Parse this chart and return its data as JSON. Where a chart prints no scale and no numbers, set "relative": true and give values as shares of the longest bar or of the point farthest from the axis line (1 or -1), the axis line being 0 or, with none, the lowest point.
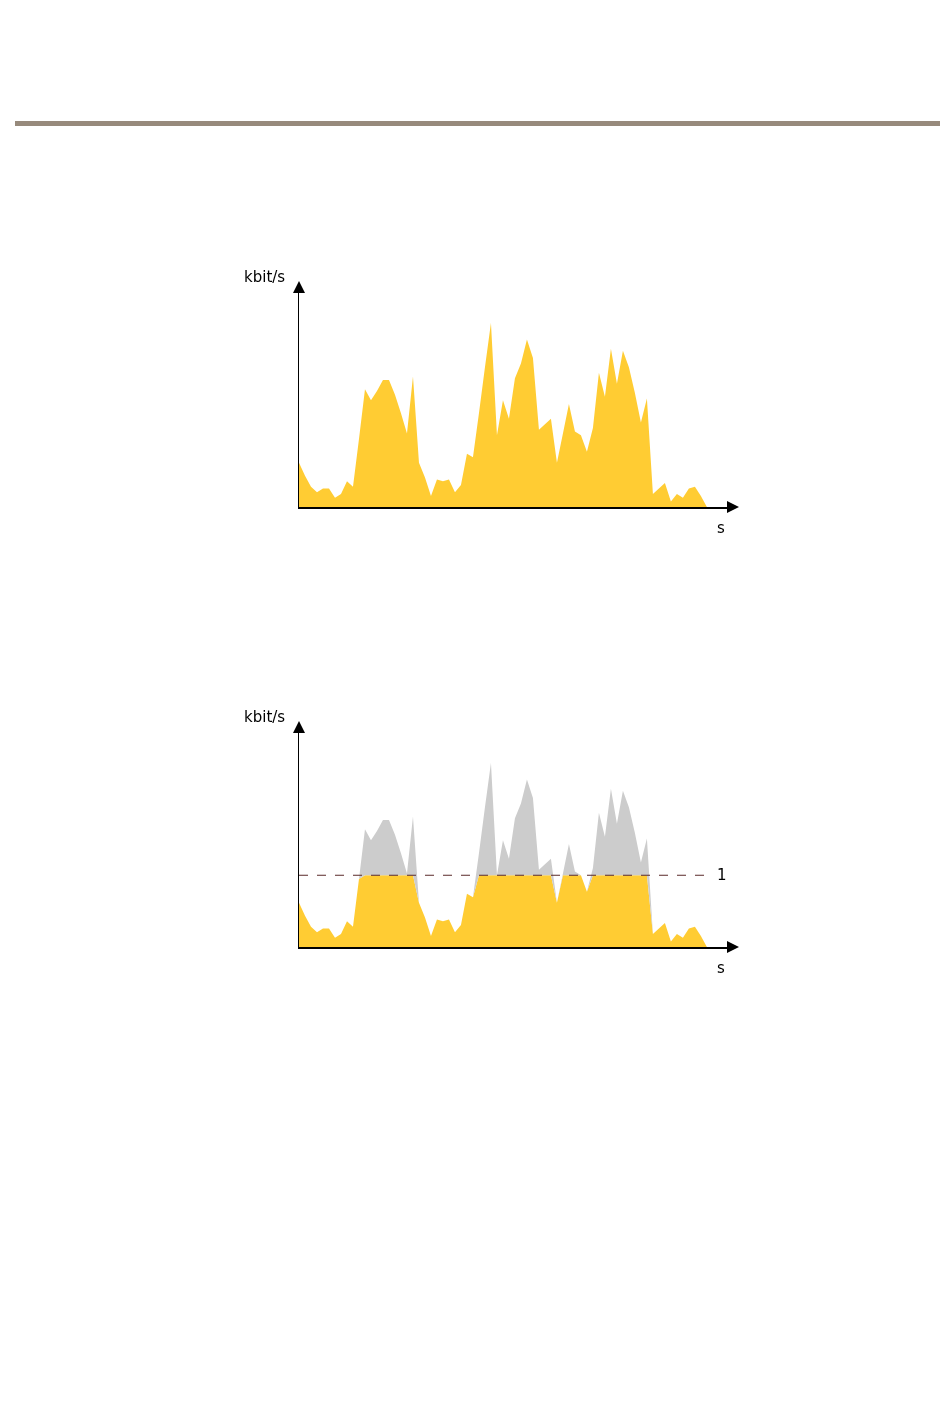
{
  "chart_data": [
    {
      "type": "area",
      "relative": true,
      "xlabel": "s",
      "ylabel": "kbit/s",
      "categories": [
        null,
        null,
        null,
        null,
        null,
        null,
        null,
        null,
        null,
        null,
        null,
        null,
        null,
        null,
        null,
        null,
        null,
        null,
        null,
        null,
        null,
        null,
        null,
        null,
        null,
        null,
        null,
        null,
        null,
        null,
        null,
        null,
        null,
        null,
        null,
        null,
        null,
        null,
        null,
        null,
        null,
        null,
        null,
        null,
        null,
        null,
        null,
        null,
        null,
        null,
        null,
        null,
        null,
        null,
        null,
        null,
        null,
        null,
        null,
        null,
        null,
        null,
        null,
        null,
        null,
        null,
        null,
        null,
        null
      ],
      "series": [
        {
          "color": "#ffcc33",
          "values": [
            0.24,
            0.17,
            0.11,
            0.08,
            0.1,
            0.1,
            0.05,
            0.07,
            0.14,
            0.11,
            0.37,
            0.64,
            0.58,
            0.63,
            0.69,
            0.69,
            0.61,
            0.51,
            0.4,
            0.71,
            0.24,
            0.16,
            0.06,
            0.15,
            0.14,
            0.15,
            0.08,
            0.12,
            0.29,
            0.27,
            0.51,
            0.76,
            1,
            0.39,
            0.58,
            0.48,
            0.7,
            0.78,
            0.91,
            0.81,
            0.42,
            0.45,
            0.48,
            0.24,
            0.4,
            0.56,
            0.41,
            0.39,
            0.3,
            0.43,
            0.73,
            0.6,
            0.86,
            0.67,
            0.85,
            0.76,
            0.62,
            0.46,
            0.59,
            0.07,
            0.1,
            0.13,
            0.03,
            0.07,
            0.05,
            0.1,
            0.11,
            0.06,
            0
          ]
        }
      ]
    },
    {
      "type": "area",
      "relative": true,
      "stacked": true,
      "xlabel": "s",
      "ylabel": "kbit/s",
      "annotations": [
        "1"
      ],
      "categories": [
        null,
        null,
        null,
        null,
        null,
        null,
        null,
        null,
        null,
        null,
        null,
        null,
        null,
        null,
        null,
        null,
        null,
        null,
        null,
        null,
        null,
        null,
        null,
        null,
        null,
        null,
        null,
        null,
        null,
        null,
        null,
        null,
        null,
        null,
        null,
        null,
        null,
        null,
        null,
        null,
        null,
        null,
        null,
        null,
        null,
        null,
        null,
        null,
        null,
        null,
        null,
        null,
        null,
        null,
        null,
        null,
        null,
        null,
        null,
        null,
        null,
        null,
        null,
        null,
        null,
        null,
        null,
        null,
        null
      ],
      "series": [
        {
          "color": "#ffcc33",
          "values": [
            0.24,
            0.17,
            0.11,
            0.08,
            0.1,
            0.1,
            0.05,
            0.07,
            0.14,
            0.11,
            0.37,
            0.39,
            0.39,
            0.39,
            0.39,
            0.39,
            0.39,
            0.39,
            0.39,
            0.39,
            0.24,
            0.16,
            0.06,
            0.15,
            0.14,
            0.15,
            0.08,
            0.12,
            0.29,
            0.27,
            0.39,
            0.39,
            0.39,
            0.39,
            0.39,
            0.39,
            0.39,
            0.39,
            0.39,
            0.39,
            0.39,
            0.39,
            0.39,
            0.24,
            0.39,
            0.39,
            0.39,
            0.39,
            0.3,
            0.39,
            0.39,
            0.39,
            0.39,
            0.39,
            0.39,
            0.39,
            0.39,
            0.39,
            0.39,
            0.07,
            0.1,
            0.13,
            0.03,
            0.07,
            0.05,
            0.1,
            0.11,
            0.06,
            0
          ]
        },
        {
          "color": "#cccccc",
          "values": [
            0,
            0,
            0,
            0,
            0,
            0,
            0,
            0,
            0,
            0,
            0,
            0.25,
            0.19,
            0.24,
            0.3,
            0.3,
            0.22,
            0.12,
            0.01,
            0.32,
            0,
            0,
            0,
            0,
            0,
            0,
            0,
            0,
            0,
            0,
            0.12,
            0.37,
            0.61,
            0,
            0.19,
            0.09,
            0.31,
            0.39,
            0.52,
            0.42,
            0.03,
            0.06,
            0.09,
            0,
            0.01,
            0.17,
            0.02,
            0,
            0,
            0.04,
            0.34,
            0.21,
            0.47,
            0.28,
            0.46,
            0.37,
            0.23,
            0.07,
            0.2,
            0,
            0,
            0,
            0,
            0,
            0,
            0,
            0,
            0,
            0
          ]
        }
      ],
      "ref_lines": [
        {
          "axis": "y",
          "value": 0.39,
          "color": "#5a2a2a",
          "line_style": "dashed"
        }
      ]
    }
  ]
}
